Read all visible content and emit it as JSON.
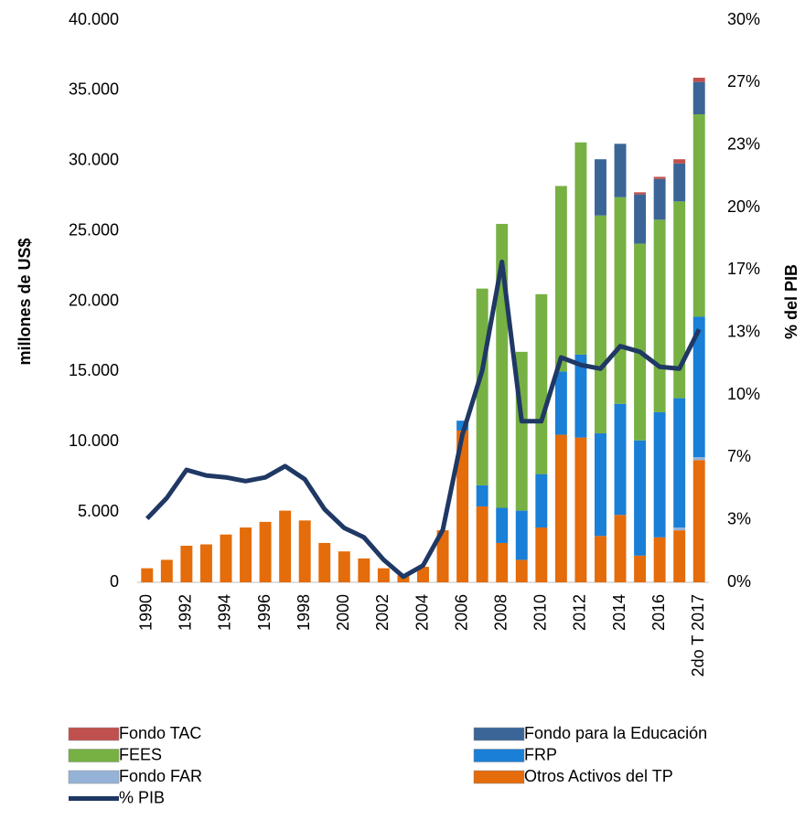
{
  "chart_data": {
    "type": "bar",
    "stacked": true,
    "categories": [
      "1990",
      null,
      "1992",
      null,
      "1994",
      null,
      "1996",
      null,
      "1998",
      null,
      "2000",
      null,
      "2002",
      null,
      "2004",
      null,
      "2006",
      null,
      "2008",
      null,
      "2010",
      null,
      "2012",
      null,
      "2014",
      null,
      "2016",
      null,
      "2do T 2017"
    ],
    "ylabel": "millones de US$",
    "y2label": "% del PIB",
    "ylim": [
      0,
      40000
    ],
    "yticks": [
      0,
      {
        "value": 5000,
        "label": "5.000"
      },
      {
        "value": 10000,
        "label": "10.000"
      },
      {
        "value": 15000,
        "label": "15.000"
      },
      {
        "value": 20000,
        "label": "20.000"
      },
      {
        "value": 25000,
        "label": "25.000"
      },
      {
        "value": 30000,
        "label": "30.000"
      },
      {
        "value": 35000,
        "label": "35.000"
      },
      {
        "value": 40000,
        "label": "40.000"
      }
    ],
    "y2lim": [
      0,
      30
    ],
    "y2ticks": [
      {
        "value": 0,
        "label": "0%"
      },
      {
        "value": 3.33,
        "label": "3%"
      },
      {
        "value": 6.67,
        "label": "7%"
      },
      {
        "value": 10,
        "label": "10%"
      },
      {
        "value": 13.33,
        "label": "13%"
      },
      {
        "value": 16.67,
        "label": "17%"
      },
      {
        "value": 20,
        "label": "20%"
      },
      {
        "value": 23.33,
        "label": "23%"
      },
      {
        "value": 26.67,
        "label": "27%"
      },
      {
        "value": 30,
        "label": "30%"
      }
    ],
    "grid": false,
    "legend": "bottom",
    "series": [
      {
        "name": "Otros Activos del TP",
        "type": "bar",
        "color": "#e46c0a",
        "values": [
          1000,
          1600,
          2600,
          2700,
          3400,
          3900,
          4300,
          5100,
          4400,
          2800,
          2200,
          1700,
          1000,
          500,
          1100,
          3700,
          10800,
          5400,
          2800,
          1600,
          3900,
          10500,
          10300,
          3300,
          4800,
          1900,
          3200,
          3700,
          8700
        ]
      },
      {
        "name": "Fondo FAR",
        "type": "bar",
        "color": "#95b3d7",
        "values": [
          0,
          0,
          0,
          0,
          0,
          0,
          0,
          0,
          0,
          0,
          0,
          0,
          0,
          0,
          0,
          0,
          0,
          0,
          0,
          0,
          0,
          0,
          0,
          0,
          0,
          0,
          0,
          200,
          200
        ]
      },
      {
        "name": "FRP",
        "type": "bar",
        "color": "#1a7fd6",
        "values": [
          0,
          0,
          0,
          0,
          0,
          0,
          0,
          0,
          0,
          0,
          0,
          0,
          0,
          0,
          0,
          0,
          700,
          1500,
          2500,
          3500,
          3800,
          4500,
          5900,
          7300,
          7900,
          8200,
          8900,
          9200,
          10000
        ]
      },
      {
        "name": "FEES",
        "type": "bar",
        "color": "#77b144",
        "values": [
          0,
          0,
          0,
          0,
          0,
          0,
          0,
          0,
          0,
          0,
          0,
          0,
          0,
          0,
          0,
          0,
          0,
          14000,
          20200,
          11300,
          12800,
          13200,
          15100,
          15500,
          14700,
          14000,
          13700,
          14000,
          14400
        ]
      },
      {
        "name": "Fondo para la Educación",
        "type": "bar",
        "color": "#3b6597",
        "values": [
          0,
          0,
          0,
          0,
          0,
          0,
          0,
          0,
          0,
          0,
          0,
          0,
          0,
          0,
          0,
          0,
          0,
          0,
          0,
          0,
          0,
          0,
          0,
          4000,
          3800,
          3500,
          2900,
          2700,
          2300
        ]
      },
      {
        "name": "Fondo TAC",
        "type": "bar",
        "color": "#c0504d",
        "values": [
          0,
          0,
          0,
          0,
          0,
          0,
          0,
          0,
          0,
          0,
          0,
          0,
          0,
          0,
          0,
          0,
          0,
          0,
          0,
          0,
          0,
          0,
          0,
          0,
          0,
          150,
          150,
          300,
          300
        ]
      },
      {
        "name": "% PIB",
        "type": "line",
        "axis": "y2",
        "color": "#1f3864",
        "values": [
          3.4,
          4.5,
          6.0,
          5.7,
          5.6,
          5.4,
          5.6,
          6.2,
          5.5,
          3.9,
          2.9,
          2.4,
          1.2,
          0.3,
          0.9,
          2.8,
          7.9,
          11.3,
          17.1,
          8.6,
          8.6,
          12.0,
          11.6,
          11.4,
          12.6,
          12.3,
          11.5,
          11.4,
          13.5
        ]
      }
    ]
  }
}
